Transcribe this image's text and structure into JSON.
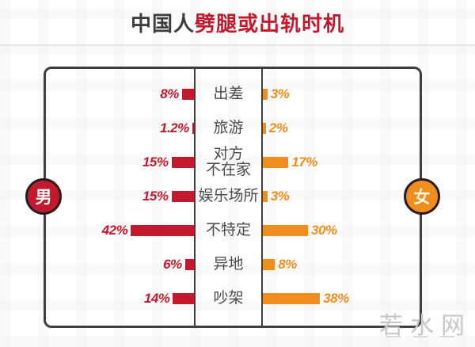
{
  "header": {
    "title_prefix": "中国人",
    "title_highlight": "劈腿或出轨时机"
  },
  "legend": {
    "male": {
      "label": "男",
      "color": "#c2192e",
      "text_color": "#ffffff"
    },
    "female": {
      "label": "女",
      "color": "#ef8e1e",
      "text_color": "#fdf3dc"
    }
  },
  "watermark": {
    "text": "若水网"
  },
  "chart_data": {
    "type": "bar",
    "orientation": "horizontal-bidirectional",
    "title": "中国人劈腿或出轨时机",
    "categories": [
      "出差",
      "旅游",
      "对方不在家",
      "娱乐场所",
      "不特定",
      "异地",
      "吵架"
    ],
    "categories_display": [
      "出差",
      "旅游",
      "对方\n不在家",
      "娱乐场所",
      "不特定",
      "异地",
      "吵架"
    ],
    "unit": "%",
    "xlim": [
      0,
      42
    ],
    "legend_position": "sides",
    "series": [
      {
        "name": "男",
        "side": "left",
        "color": "#c2192e",
        "values": [
          8,
          1.2,
          15,
          15,
          42,
          6,
          14
        ],
        "labels": [
          "8%",
          "1.2%",
          "15%",
          "15%",
          "42%",
          "6%",
          "14%"
        ]
      },
      {
        "name": "女",
        "side": "right",
        "color": "#ef8e1e",
        "values": [
          3,
          2,
          17,
          3,
          30,
          8,
          38
        ],
        "labels": [
          "3%",
          "2%",
          "17%",
          "3%",
          "30%",
          "8%",
          "38%"
        ]
      }
    ]
  }
}
